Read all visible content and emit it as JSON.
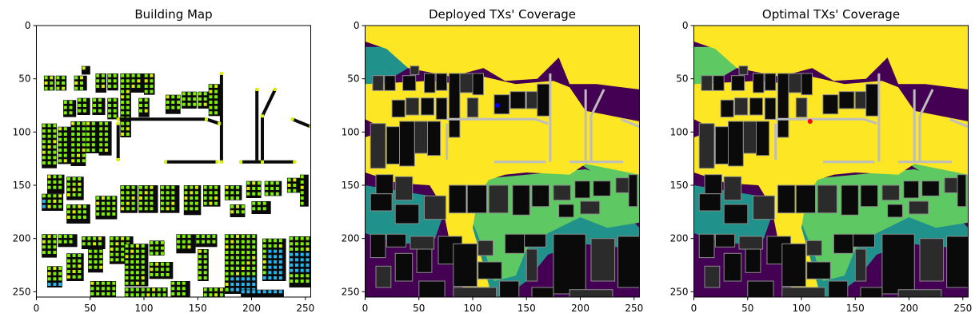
{
  "colors": {
    "building_black": "#0a0a0a",
    "building_gray": "#2b2b2b",
    "outline": "#8a8a8a",
    "candidate_green": "#7cf000",
    "candidate_yellow": "#d8f000",
    "candidate_cyan": "#22b7f0",
    "coverage_yellow": "#fde725",
    "coverage_green": "#5ec962",
    "coverage_teal": "#21918c",
    "coverage_purple": "#440154",
    "tx_deployed": "#0000ff",
    "tx_optimal": "#ff0000"
  },
  "chart_data": [
    {
      "type": "heatmap",
      "title": "Building Map",
      "xlim": [
        0,
        255
      ],
      "ylim": [
        255,
        0
      ],
      "x_ticks": [
        0,
        50,
        100,
        150,
        200,
        250
      ],
      "y_ticks": [
        0,
        50,
        100,
        150,
        200,
        250
      ]
    },
    {
      "type": "heatmap",
      "title": "Deployed TXs' Coverage",
      "xlim": [
        0,
        255
      ],
      "ylim": [
        255,
        0
      ],
      "x_ticks": [
        0,
        50,
        100,
        150,
        200,
        250
      ],
      "y_ticks": [
        0,
        50,
        100,
        150,
        200,
        250
      ],
      "tx_marker": {
        "x": 123,
        "y": 75
      }
    },
    {
      "type": "heatmap",
      "title": "Optimal TXs' Coverage",
      "xlim": [
        0,
        255
      ],
      "ylim": [
        255,
        0
      ],
      "x_ticks": [
        0,
        50,
        100,
        150,
        200,
        250
      ],
      "y_ticks": [
        0,
        50,
        100,
        150,
        200,
        250
      ],
      "tx_marker": {
        "x": 108,
        "y": 90
      }
    }
  ]
}
